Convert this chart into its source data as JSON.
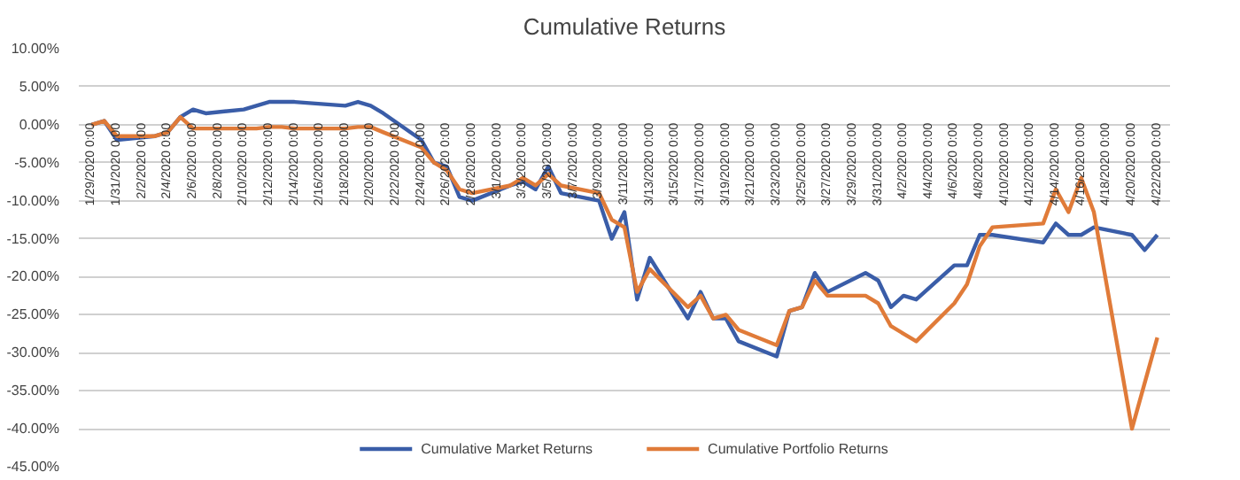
{
  "chart_data": {
    "type": "line",
    "title": "Cumulative Returns",
    "x": [
      "2020-01-29",
      "2020-01-30",
      "2020-01-31",
      "2020-02-03",
      "2020-02-04",
      "2020-02-05",
      "2020-02-06",
      "2020-02-07",
      "2020-02-10",
      "2020-02-11",
      "2020-02-12",
      "2020-02-13",
      "2020-02-14",
      "2020-02-18",
      "2020-02-19",
      "2020-02-20",
      "2020-02-21",
      "2020-02-24",
      "2020-02-25",
      "2020-02-26",
      "2020-02-27",
      "2020-02-28",
      "2020-03-02",
      "2020-03-03",
      "2020-03-04",
      "2020-03-05",
      "2020-03-06",
      "2020-03-09",
      "2020-03-10",
      "2020-03-11",
      "2020-03-12",
      "2020-03-13",
      "2020-03-16",
      "2020-03-17",
      "2020-03-18",
      "2020-03-19",
      "2020-03-20",
      "2020-03-23",
      "2020-03-24",
      "2020-03-25",
      "2020-03-26",
      "2020-03-27",
      "2020-03-30",
      "2020-03-31",
      "2020-04-01",
      "2020-04-02",
      "2020-04-03",
      "2020-04-06",
      "2020-04-07",
      "2020-04-08",
      "2020-04-09",
      "2020-04-13",
      "2020-04-14",
      "2020-04-15",
      "2020-04-16",
      "2020-04-17",
      "2020-04-20",
      "2020-04-21",
      "2020-04-22"
    ],
    "series": [
      {
        "name": "Cumulative Market Returns",
        "color": "#3a5da8",
        "values": [
          0,
          0.5,
          -2,
          -1.5,
          -1,
          1,
          2,
          1.5,
          2,
          2.5,
          3,
          3,
          3,
          2.5,
          3,
          2.5,
          1.5,
          -2,
          -5,
          -5.5,
          -9.5,
          -10,
          -8,
          -7.5,
          -8.5,
          -5.5,
          -9,
          -10,
          -15,
          -11.5,
          -23,
          -17.5,
          -25.5,
          -22,
          -25.5,
          -25.5,
          -28.5,
          -30.5,
          -24.5,
          -24,
          -19.5,
          -22,
          -19.5,
          -20.5,
          -24,
          -22.5,
          -23,
          -18.5,
          -18.5,
          -14.5,
          -14.5,
          -15.5,
          -13,
          -14.5,
          -14.5,
          -13.5,
          -14.5,
          -16.5,
          -14.5
        ]
      },
      {
        "name": "Cumulative Portfolio Returns",
        "color": "#e07b39",
        "values": [
          0,
          0.5,
          -1.5,
          -1.5,
          -1,
          1,
          -0.5,
          -0.5,
          -0.5,
          -0.5,
          -0.3,
          -0.3,
          -0.5,
          -0.5,
          -0.3,
          -0.3,
          -1,
          -3,
          -5,
          -6,
          -8.5,
          -9,
          -8,
          -7,
          -8,
          -6.5,
          -8,
          -9,
          -12.5,
          -13.5,
          -22,
          -19,
          -24,
          -22.5,
          -25.5,
          -25,
          -27,
          -29,
          -24.5,
          -24,
          -20.5,
          -22.5,
          -22.5,
          -23.5,
          -26.5,
          -27.5,
          -28.5,
          -23.5,
          -21,
          -16,
          -13.5,
          -13,
          -8.5,
          -11.5,
          -7,
          -11.5,
          -40,
          -34,
          -28
        ]
      }
    ],
    "xlim": [
      "2020-01-28",
      "2020-04-23"
    ],
    "xticks": [
      {
        "value": "2020-01-29",
        "label": "1/29/2020 0:00"
      },
      {
        "value": "2020-01-31",
        "label": "1/31/2020 0:00"
      },
      {
        "value": "2020-02-02",
        "label": "2/2/2020 0:00"
      },
      {
        "value": "2020-02-04",
        "label": "2/4/2020 0:00"
      },
      {
        "value": "2020-02-06",
        "label": "2/6/2020 0:00"
      },
      {
        "value": "2020-02-08",
        "label": "2/8/2020 0:00"
      },
      {
        "value": "2020-02-10",
        "label": "2/10/2020 0:00"
      },
      {
        "value": "2020-02-12",
        "label": "2/12/2020 0:00"
      },
      {
        "value": "2020-02-14",
        "label": "2/14/2020 0:00"
      },
      {
        "value": "2020-02-16",
        "label": "2/16/2020 0:00"
      },
      {
        "value": "2020-02-18",
        "label": "2/18/2020 0:00"
      },
      {
        "value": "2020-02-20",
        "label": "2/20/2020 0:00"
      },
      {
        "value": "2020-02-22",
        "label": "2/22/2020 0:00"
      },
      {
        "value": "2020-02-24",
        "label": "2/24/2020 0:00"
      },
      {
        "value": "2020-02-26",
        "label": "2/26/2020 0:00"
      },
      {
        "value": "2020-02-28",
        "label": "2/28/2020 0:00"
      },
      {
        "value": "2020-03-01",
        "label": "3/1/2020 0:00"
      },
      {
        "value": "2020-03-03",
        "label": "3/3/2020 0:00"
      },
      {
        "value": "2020-03-05",
        "label": "3/5/2020 0:00"
      },
      {
        "value": "2020-03-07",
        "label": "3/7/2020 0:00"
      },
      {
        "value": "2020-03-09",
        "label": "3/9/2020 0:00"
      },
      {
        "value": "2020-03-11",
        "label": "3/11/2020 0:00"
      },
      {
        "value": "2020-03-13",
        "label": "3/13/2020 0:00"
      },
      {
        "value": "2020-03-15",
        "label": "3/15/2020 0:00"
      },
      {
        "value": "2020-03-17",
        "label": "3/17/2020 0:00"
      },
      {
        "value": "2020-03-19",
        "label": "3/19/2020 0:00"
      },
      {
        "value": "2020-03-21",
        "label": "3/21/2020 0:00"
      },
      {
        "value": "2020-03-23",
        "label": "3/23/2020 0:00"
      },
      {
        "value": "2020-03-25",
        "label": "3/25/2020 0:00"
      },
      {
        "value": "2020-03-27",
        "label": "3/27/2020 0:00"
      },
      {
        "value": "2020-03-29",
        "label": "3/29/2020 0:00"
      },
      {
        "value": "2020-03-31",
        "label": "3/31/2020 0:00"
      },
      {
        "value": "2020-04-02",
        "label": "4/2/2020 0:00"
      },
      {
        "value": "2020-04-04",
        "label": "4/4/2020 0:00"
      },
      {
        "value": "2020-04-06",
        "label": "4/6/2020 0:00"
      },
      {
        "value": "2020-04-08",
        "label": "4/8/2020 0:00"
      },
      {
        "value": "2020-04-10",
        "label": "4/10/2020 0:00"
      },
      {
        "value": "2020-04-12",
        "label": "4/12/2020 0:00"
      },
      {
        "value": "2020-04-14",
        "label": "4/14/2020 0:00"
      },
      {
        "value": "2020-04-16",
        "label": "4/16/2020 0:00"
      },
      {
        "value": "2020-04-18",
        "label": "4/18/2020 0:00"
      },
      {
        "value": "2020-04-20",
        "label": "4/20/2020 0:00"
      },
      {
        "value": "2020-04-22",
        "label": "4/22/2020 0:00"
      }
    ],
    "ylim": [
      -45,
      10
    ],
    "yticks": [
      {
        "value": 10,
        "label": "10.00%"
      },
      {
        "value": 5,
        "label": "5.00%"
      },
      {
        "value": 0,
        "label": "0.00%"
      },
      {
        "value": -5,
        "label": "-5.00%"
      },
      {
        "value": -10,
        "label": "-10.00%"
      },
      {
        "value": -15,
        "label": "-15.00%"
      },
      {
        "value": -20,
        "label": "-20.00%"
      },
      {
        "value": -25,
        "label": "-25.00%"
      },
      {
        "value": -30,
        "label": "-30.00%"
      },
      {
        "value": -35,
        "label": "-35.00%"
      },
      {
        "value": -40,
        "label": "-40.00%"
      },
      {
        "value": -45,
        "label": "-45.00%"
      }
    ],
    "grid": "y",
    "legend": "bottom",
    "marker": "none",
    "line_style": "solid"
  }
}
